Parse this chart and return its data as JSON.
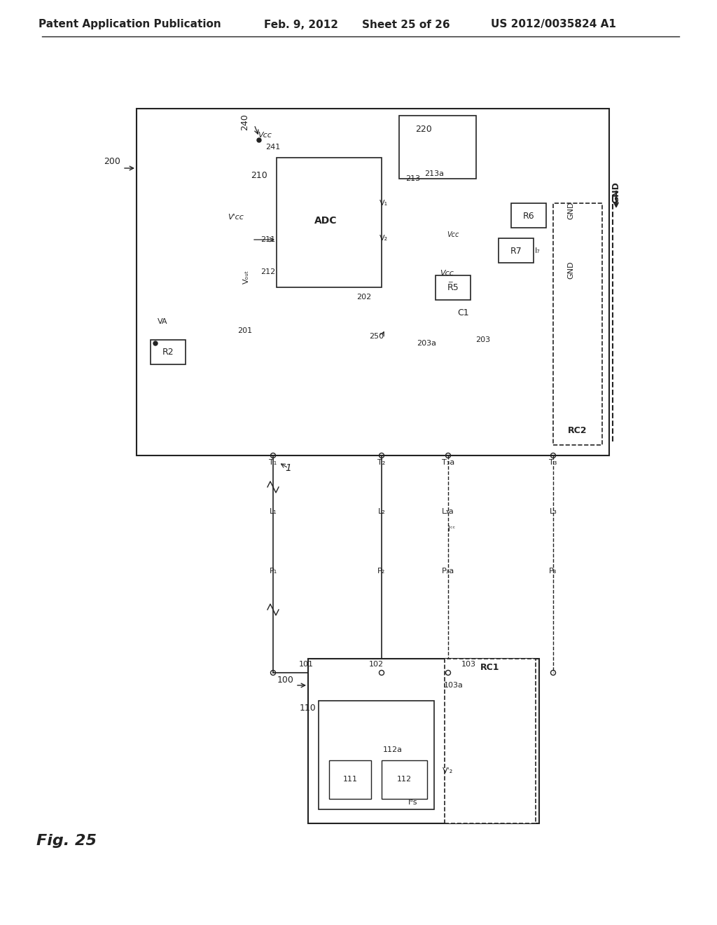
{
  "bg_color": "#ffffff",
  "header_text": "Patent Application Publication",
  "header_date": "Feb. 9, 2012",
  "header_sheet": "Sheet 25 of 26",
  "header_patent": "US 2012/0035824 A1",
  "fig_label": "Fig. 25",
  "title_fontsize": 11,
  "label_fontsize": 9,
  "small_fontsize": 8,
  "line_color": "#222222",
  "box_bg": "#ffffff"
}
